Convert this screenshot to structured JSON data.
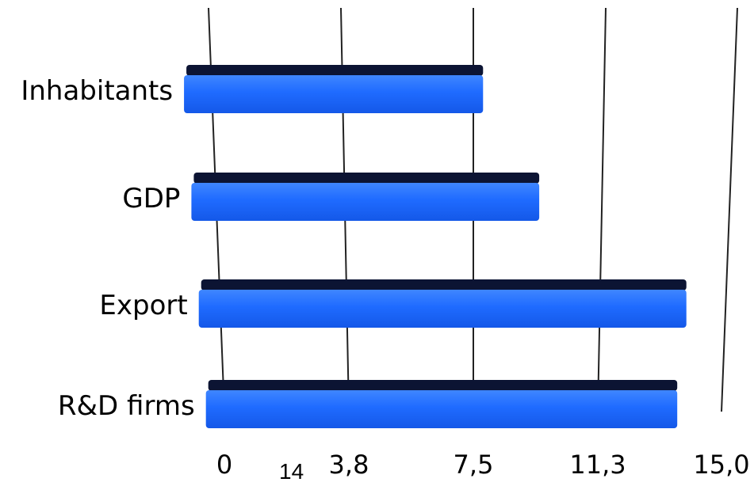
{
  "page_number": "14",
  "chart_data": {
    "type": "bar",
    "orientation": "horizontal",
    "categories": [
      "Inhabitants",
      "GDP",
      "Export",
      "R&D firms"
    ],
    "values": [
      9.2,
      10.7,
      15.0,
      14.5
    ],
    "x_ticks": [
      "0",
      "3,8",
      "7,5",
      "11,3",
      "15,0"
    ],
    "xlim": [
      0,
      15
    ],
    "grid": true,
    "legend": "none",
    "bar_color": "#1f6bff",
    "bar_top_color": "#0c1433",
    "axis_line_color": "#222222"
  }
}
